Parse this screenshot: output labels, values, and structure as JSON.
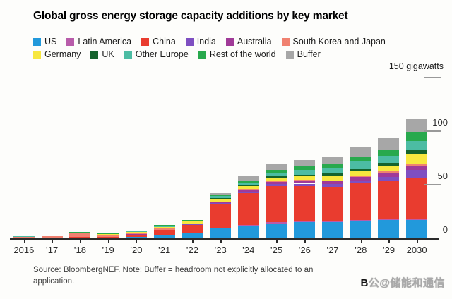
{
  "title": "Global gross energy storage capacity additions by key market",
  "source_note": "Source: BloombergNEF. Note: Buffer = headroom not explicitly allocated to an application.",
  "watermark": {
    "prefix": "B",
    "text": "公@储能和通信"
  },
  "y_axis": {
    "unit_label": "150 gigawatts",
    "ticks": [
      {
        "value": 0,
        "label": "0",
        "show_line": false
      },
      {
        "value": 50,
        "label": "50",
        "show_line": true
      },
      {
        "value": 100,
        "label": "100",
        "show_line": true
      },
      {
        "value": 150,
        "label": "",
        "show_line": true
      }
    ]
  },
  "chart_data": {
    "type": "bar",
    "stacked": true,
    "title": "Global gross energy storage capacity additions by key market",
    "xlabel": "",
    "ylabel": "gigawatts",
    "ylim": [
      0,
      150
    ],
    "grid": false,
    "legend_position": "top",
    "categories": [
      "2016",
      "’17",
      "’18",
      "’19",
      "’20",
      "’21",
      "’22",
      "’23",
      "’24",
      "’25",
      "’26",
      "’27",
      "’28",
      "’29",
      "2030"
    ],
    "series": [
      {
        "name": "US",
        "color": "#2299db",
        "values": [
          0.3,
          0.4,
          0.6,
          0.6,
          1.5,
          3.5,
          4.5,
          9.0,
          12.0,
          14.0,
          15.0,
          15.0,
          16.0,
          17.0,
          17.0
        ]
      },
      {
        "name": "Latin America",
        "color": "#b85caa",
        "values": [
          0.0,
          0.0,
          0.0,
          0.0,
          0.1,
          0.1,
          0.2,
          0.5,
          0.8,
          1.0,
          1.0,
          1.2,
          1.2,
          1.5,
          1.5
        ]
      },
      {
        "name": "China",
        "color": "#e93c2f",
        "values": [
          0.3,
          0.4,
          0.8,
          0.9,
          2.0,
          4.0,
          8.0,
          23.0,
          30.0,
          34.0,
          33.0,
          32.0,
          34.0,
          35.0,
          37.5
        ]
      },
      {
        "name": "India",
        "color": "#7e4fc1",
        "values": [
          0.0,
          0.0,
          0.0,
          0.0,
          0.0,
          0.1,
          0.2,
          0.3,
          0.8,
          1.5,
          2.0,
          2.5,
          3.0,
          4.0,
          8.0
        ]
      },
      {
        "name": "Australia",
        "color": "#a03a98",
        "values": [
          0.1,
          0.1,
          0.1,
          0.1,
          0.1,
          0.3,
          0.3,
          0.5,
          1.5,
          2.0,
          2.5,
          2.5,
          3.0,
          3.5,
          4.0
        ]
      },
      {
        "name": "South Korea and Japan",
        "color": "#f08170",
        "values": [
          0.4,
          1.0,
          2.8,
          2.0,
          1.8,
          1.5,
          0.8,
          1.0,
          1.0,
          1.0,
          1.0,
          1.0,
          1.0,
          1.2,
          2.0
        ]
      },
      {
        "name": "Germany",
        "color": "#f7e73f",
        "values": [
          0.1,
          0.2,
          0.3,
          0.3,
          0.5,
          0.8,
          1.5,
          2.5,
          2.5,
          3.0,
          3.5,
          4.5,
          5.0,
          5.5,
          9.0
        ]
      },
      {
        "name": "UK",
        "color": "#15632d",
        "values": [
          0.0,
          0.0,
          0.1,
          0.0,
          0.0,
          0.3,
          0.2,
          0.7,
          1.0,
          1.5,
          1.5,
          1.8,
          2.0,
          2.5,
          3.0
        ]
      },
      {
        "name": "Other Europe",
        "color": "#4cbca3",
        "values": [
          0.1,
          0.2,
          0.3,
          0.3,
          0.3,
          0.8,
          0.5,
          2.0,
          2.5,
          3.5,
          4.5,
          5.5,
          6.5,
          7.0,
          9.0
        ]
      },
      {
        "name": "Rest of the world",
        "color": "#28a94d",
        "values": [
          0.0,
          0.2,
          0.2,
          0.3,
          0.4,
          0.8,
          0.3,
          1.5,
          2.0,
          2.5,
          3.0,
          4.0,
          4.3,
          6.0,
          8.5
        ]
      },
      {
        "name": "Buffer",
        "color": "#a7a7a7",
        "values": [
          0.0,
          0.0,
          0.0,
          0.0,
          0.0,
          0.0,
          0.0,
          2.0,
          4.0,
          6.0,
          6.0,
          6.0,
          9.0,
          11.0,
          12.0
        ]
      }
    ],
    "legend_rows": [
      [
        0,
        1,
        2,
        3,
        4,
        5
      ],
      [
        6,
        7,
        8,
        9,
        10
      ]
    ]
  }
}
